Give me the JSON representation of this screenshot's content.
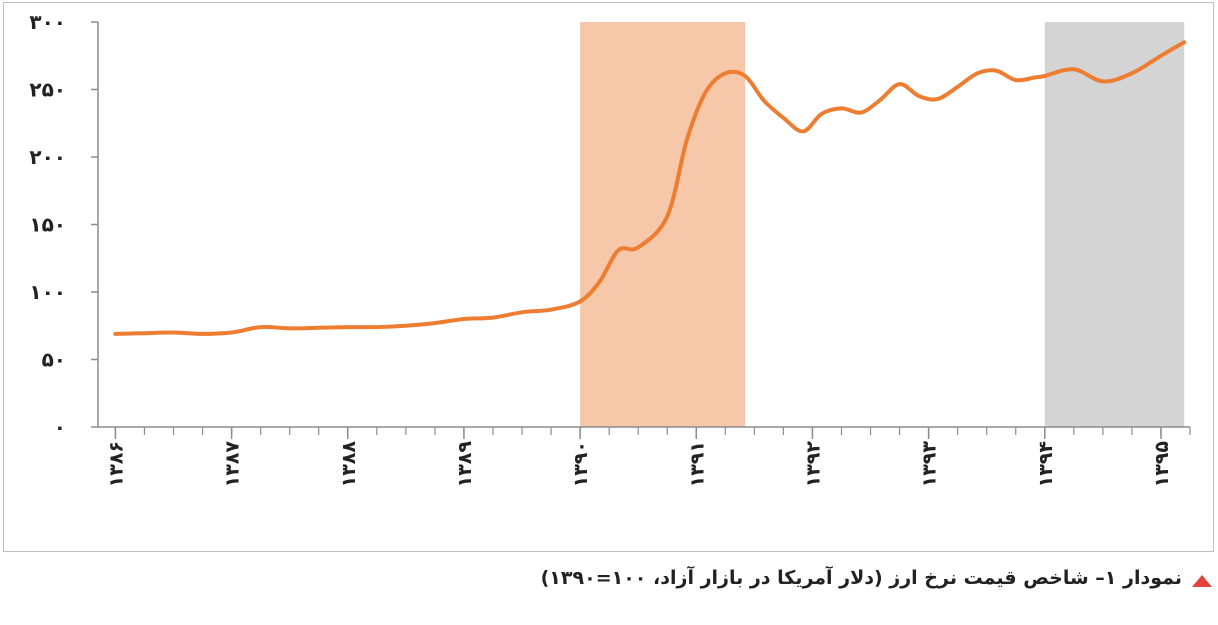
{
  "chart_data": {
    "type": "line",
    "title": "",
    "xlabel": "",
    "ylabel": "",
    "ylim": [
      0,
      300
    ],
    "y_ticks": [
      {
        "value": 0,
        "label": "٠"
      },
      {
        "value": 50,
        "label": "۵٠"
      },
      {
        "value": 100,
        "label": "١٠٠"
      },
      {
        "value": 150,
        "label": "١۵٠"
      },
      {
        "value": 200,
        "label": "٢٠٠"
      },
      {
        "value": 250,
        "label": "٢۵٠"
      },
      {
        "value": 300,
        "label": "٣٠٠"
      }
    ],
    "x_range": [
      1385.85,
      1395.25
    ],
    "x_ticks": [
      {
        "value": 1386,
        "label": "١٣٨۶"
      },
      {
        "value": 1387,
        "label": "١٣٨٧"
      },
      {
        "value": 1388,
        "label": "١٣٨٨"
      },
      {
        "value": 1389,
        "label": "١٣٨٩"
      },
      {
        "value": 1390,
        "label": "١٣٩٠"
      },
      {
        "value": 1391,
        "label": "١٣٩١"
      },
      {
        "value": 1392,
        "label": "١٣٩٢"
      },
      {
        "value": 1393,
        "label": "١٣٩٣"
      },
      {
        "value": 1394,
        "label": "١٣٩۴"
      },
      {
        "value": 1395,
        "label": "١٣٩۵"
      }
    ],
    "minor_ticks_per_year": 4,
    "grid": false,
    "shaded_regions": [
      {
        "from": 1390,
        "to": 1391.42,
        "color": "#f7c7a9"
      },
      {
        "from": 1394,
        "to": 1395.2,
        "color": "#d4d4d4"
      }
    ],
    "series": [
      {
        "color": "#ed7d31",
        "points": [
          [
            1386.0,
            69
          ],
          [
            1386.25,
            69.5
          ],
          [
            1386.5,
            70
          ],
          [
            1386.75,
            69
          ],
          [
            1387.0,
            70
          ],
          [
            1387.25,
            74
          ],
          [
            1387.5,
            73
          ],
          [
            1387.75,
            73.5
          ],
          [
            1388.0,
            74
          ],
          [
            1388.25,
            74
          ],
          [
            1388.5,
            75
          ],
          [
            1388.75,
            77
          ],
          [
            1389.0,
            80
          ],
          [
            1389.25,
            81
          ],
          [
            1389.5,
            85
          ],
          [
            1389.75,
            87
          ],
          [
            1390.0,
            93
          ],
          [
            1390.17,
            108
          ],
          [
            1390.33,
            131
          ],
          [
            1390.5,
            133
          ],
          [
            1390.75,
            156
          ],
          [
            1390.92,
            213
          ],
          [
            1391.08,
            248
          ],
          [
            1391.25,
            262
          ],
          [
            1391.42,
            260
          ],
          [
            1391.58,
            242
          ],
          [
            1391.75,
            229
          ],
          [
            1391.92,
            219
          ],
          [
            1392.08,
            232
          ],
          [
            1392.25,
            236
          ],
          [
            1392.42,
            233
          ],
          [
            1392.58,
            242
          ],
          [
            1392.75,
            254
          ],
          [
            1392.92,
            245
          ],
          [
            1393.08,
            243
          ],
          [
            1393.25,
            252
          ],
          [
            1393.42,
            262
          ],
          [
            1393.58,
            264
          ],
          [
            1393.75,
            257
          ],
          [
            1393.92,
            259
          ],
          [
            1394.0,
            260
          ],
          [
            1394.25,
            265
          ],
          [
            1394.5,
            256
          ],
          [
            1394.75,
            262
          ],
          [
            1395.0,
            275
          ],
          [
            1395.2,
            285
          ]
        ]
      }
    ]
  },
  "caption": {
    "text": "نمودار ١– شاخص قیمت نرخ ارز (دلار آمریکا در بازار آزاد، ١٠٠=١٣٩٠)",
    "marker_color": "#e2433a"
  }
}
